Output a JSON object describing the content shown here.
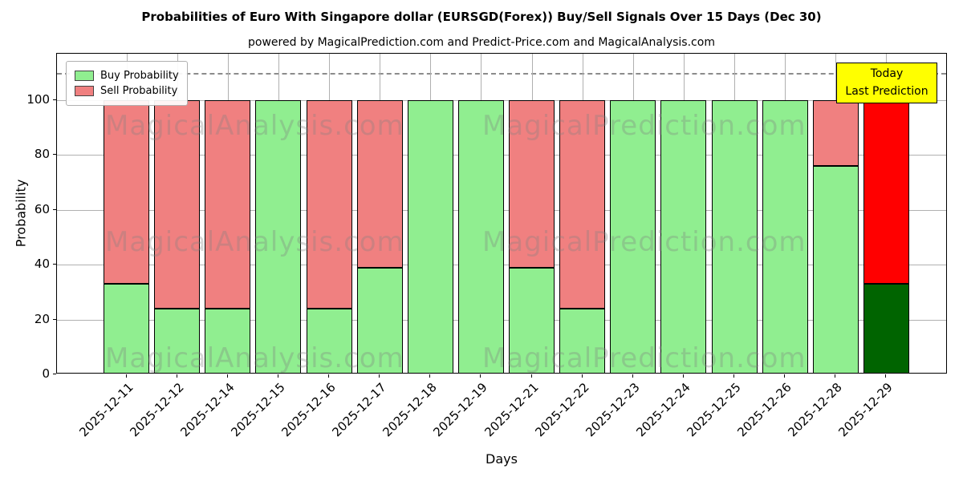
{
  "title": "Probabilities of Euro With Singapore dollar (EURSGD(Forex)) Buy/Sell Signals Over 15 Days (Dec 30)",
  "subtitle": "powered by MagicalPrediction.com and Predict-Price.com and MagicalAnalysis.com",
  "annotation": {
    "line1": "Today",
    "line2": "Last Prediction",
    "bg_color": "#ffff00"
  },
  "watermarks": {
    "left": "MagicalAnalysis.com",
    "right": "MagicalPrediction.com"
  },
  "chart_data": {
    "type": "bar",
    "stacked": true,
    "title": "Probabilities of Euro With Singapore dollar (EURSGD(Forex)) Buy/Sell Signals Over 15 Days (Dec 30)",
    "xlabel": "Days",
    "ylabel": "Probability",
    "ylim": [
      0,
      117
    ],
    "yticks": [
      0,
      20,
      40,
      60,
      80,
      100
    ],
    "dashed_line_y": 110,
    "grid": true,
    "legend_position": "upper left",
    "categories": [
      "2025-12-11",
      "2025-12-12",
      "2025-12-14",
      "2025-12-15",
      "2025-12-16",
      "2025-12-17",
      "2025-12-18",
      "2025-12-19",
      "2025-12-21",
      "2025-12-22",
      "2025-12-23",
      "2025-12-24",
      "2025-12-25",
      "2025-12-26",
      "2025-12-28",
      "2025-12-29"
    ],
    "series": [
      {
        "name": "Buy Probability",
        "color": "#90ee90",
        "values": [
          33,
          24,
          24,
          100,
          24,
          39,
          100,
          100,
          39,
          24,
          100,
          100,
          100,
          100,
          76,
          33
        ]
      },
      {
        "name": "Sell Probability",
        "color": "#f08080",
        "values": [
          67,
          76,
          76,
          0,
          76,
          61,
          0,
          0,
          61,
          76,
          0,
          0,
          0,
          0,
          24,
          67
        ]
      }
    ],
    "today_bar": {
      "category": "2025-12-29",
      "index": 15,
      "buy_color": "#006400",
      "sell_color": "#ff0000"
    }
  }
}
